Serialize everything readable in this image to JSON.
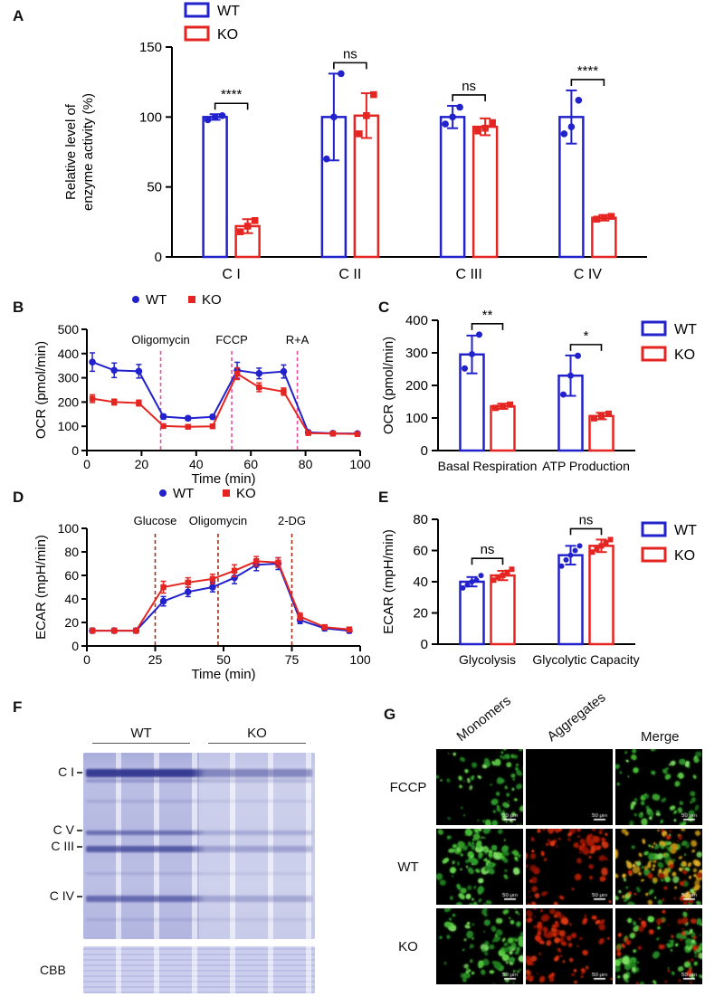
{
  "colors": {
    "wt": "#2222cc",
    "ko": "#e52521",
    "annotation_b": "#ec4fa4",
    "annotation_d": "#a5301c",
    "axis": "#000000",
    "gel_band": "#2e328c",
    "gel_bg": "#cfd3ee"
  },
  "panel_a": {
    "label": "A",
    "chart_data": {
      "type": "bar",
      "ylabel_lines": [
        "Relative level of",
        "enzyme activity (%)"
      ],
      "ylim": [
        0,
        150
      ],
      "yticks": [
        0,
        50,
        100,
        150
      ],
      "categories": [
        "C I",
        "C II",
        "C III",
        "C IV"
      ],
      "legend": [
        "WT",
        "KO"
      ],
      "series": [
        {
          "name": "WT",
          "values": [
            100,
            100,
            100,
            100
          ],
          "errors": [
            2,
            31,
            8,
            19
          ],
          "points": [
            [
              98,
              100,
              101
            ],
            [
              70,
              100,
              131
            ],
            [
              95,
              100,
              107
            ],
            [
              88,
              93,
              112
            ]
          ]
        },
        {
          "name": "KO",
          "values": [
            22,
            101,
            93,
            28
          ],
          "errors": [
            5,
            16,
            6,
            2
          ],
          "points": [
            [
              18,
              22,
              26
            ],
            [
              88,
              101,
              116
            ],
            [
              90,
              92,
              96
            ],
            [
              27,
              28,
              29
            ]
          ]
        }
      ],
      "significance": [
        "****",
        "ns",
        "ns",
        "****"
      ]
    }
  },
  "panel_b": {
    "label": "B",
    "chart_data": {
      "type": "line",
      "xlabel": "Time (min)",
      "ylabel": "OCR (pmol/min)",
      "xlim": [
        0,
        100
      ],
      "xticks": [
        0,
        20,
        40,
        60,
        80,
        100
      ],
      "ylim": [
        0,
        500
      ],
      "yticks": [
        0,
        100,
        200,
        300,
        400,
        500
      ],
      "legend": [
        "WT",
        "KO"
      ],
      "annotations": [
        {
          "x": 27,
          "label": "Oligomycin"
        },
        {
          "x": 53,
          "label": "FCCP"
        },
        {
          "x": 77,
          "label": "R+A"
        }
      ],
      "x": [
        2,
        10,
        19,
        28,
        37,
        46,
        55,
        63,
        72,
        81,
        90,
        99
      ],
      "series": [
        {
          "name": "WT",
          "marker": "circle",
          "y": [
            365,
            331,
            327,
            140,
            133,
            139,
            331,
            318,
            326,
            75,
            71,
            70
          ],
          "errors": [
            38,
            30,
            28,
            10,
            8,
            8,
            33,
            22,
            27,
            7,
            5,
            5
          ]
        },
        {
          "name": "KO",
          "marker": "square",
          "y": [
            214,
            200,
            196,
            101,
            98,
            100,
            317,
            261,
            243,
            72,
            70,
            68
          ],
          "errors": [
            16,
            12,
            12,
            7,
            6,
            6,
            24,
            18,
            15,
            5,
            4,
            4
          ]
        }
      ]
    }
  },
  "panel_c": {
    "label": "C",
    "chart_data": {
      "type": "bar",
      "ylabel": "OCR (pmol/min)",
      "ylim": [
        0,
        400
      ],
      "yticks": [
        0,
        100,
        200,
        300,
        400
      ],
      "categories": [
        "Basal Respiration",
        "ATP Production"
      ],
      "legend": [
        "WT",
        "KO"
      ],
      "series": [
        {
          "name": "WT",
          "values": [
            295,
            230
          ],
          "errors": [
            58,
            62
          ],
          "points": [
            [
              252,
              296,
              356
            ],
            [
              172,
              230,
              291
            ]
          ]
        },
        {
          "name": "KO",
          "values": [
            136,
            106
          ],
          "errors": [
            8,
            10
          ],
          "points": [
            [
              131,
              136,
              141
            ],
            [
              99,
              106,
              113
            ]
          ]
        }
      ],
      "significance": [
        "**",
        "*"
      ]
    }
  },
  "panel_d": {
    "label": "D",
    "chart_data": {
      "type": "line",
      "xlabel": "Time (min)",
      "ylabel": "ECAR (mpH/min)",
      "xlim": [
        0,
        100
      ],
      "xticks": [
        0,
        25,
        50,
        75,
        100
      ],
      "ylim": [
        0,
        100
      ],
      "yticks": [
        0,
        20,
        40,
        60,
        80,
        100
      ],
      "legend": [
        "WT",
        "KO"
      ],
      "annotations": [
        {
          "x": 25,
          "label": "Glucose"
        },
        {
          "x": 48,
          "label": "Oligomycin"
        },
        {
          "x": 75,
          "label": "2-DG"
        }
      ],
      "x": [
        2,
        10,
        18,
        28,
        37,
        46,
        54,
        62,
        70,
        78,
        87,
        96
      ],
      "series": [
        {
          "name": "WT",
          "marker": "circle",
          "y": [
            13,
            13,
            13,
            38,
            46,
            50,
            58,
            69,
            70,
            22,
            15,
            13
          ],
          "errors": [
            2,
            2,
            2,
            4,
            4,
            4,
            5,
            5,
            5,
            3,
            2,
            2
          ]
        },
        {
          "name": "KO",
          "marker": "square",
          "y": [
            13,
            13,
            13,
            50,
            54,
            57,
            64,
            72,
            71,
            25,
            16,
            14
          ],
          "errors": [
            2,
            2,
            2,
            5,
            4,
            4,
            5,
            4,
            4,
            3,
            2,
            2
          ]
        }
      ]
    }
  },
  "panel_e": {
    "label": "E",
    "chart_data": {
      "type": "bar",
      "ylabel": "ECAR (mpH/min)",
      "ylim": [
        0,
        80
      ],
      "yticks": [
        0,
        20,
        40,
        60,
        80
      ],
      "categories": [
        "Glycolysis",
        "Glycolytic Capacity"
      ],
      "legend": [
        "WT",
        "KO"
      ],
      "series": [
        {
          "name": "WT",
          "values": [
            40,
            57
          ],
          "errors": [
            3,
            6
          ],
          "points": [
            [
              36,
              38,
              40,
              41,
              44
            ],
            [
              50,
              54,
              57,
              60,
              63
            ]
          ]
        },
        {
          "name": "KO",
          "values": [
            44,
            63
          ],
          "errors": [
            3,
            4
          ],
          "points": [
            [
              41,
              43,
              44,
              46,
              48
            ],
            [
              59,
              61,
              63,
              65,
              67
            ]
          ]
        }
      ],
      "significance": [
        "ns",
        "ns"
      ]
    }
  },
  "panel_f": {
    "label": "F",
    "gel": {
      "groups": [
        "WT",
        "KO"
      ],
      "band_labels": [
        "C I",
        "C V",
        "C III",
        "C IV"
      ],
      "cbb_label": "CBB"
    }
  },
  "panel_g": {
    "label": "G",
    "columns": [
      "Monomers",
      "Aggregates",
      "Merge"
    ],
    "rows": [
      "FCCP",
      "WT",
      "KO"
    ],
    "scale_bar": "50 μm",
    "cells": [
      [
        "green-sparse",
        "black",
        "green-sparse"
      ],
      [
        "green",
        "red",
        "merge-yellow"
      ],
      [
        "green",
        "red",
        "merge-mixed"
      ]
    ]
  }
}
